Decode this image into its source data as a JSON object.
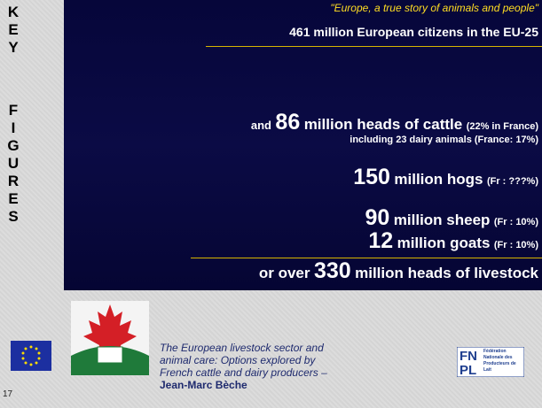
{
  "side_label": [
    "KEY",
    "FIGURES"
  ],
  "quote": "\"Europe, a true story of animals and people\"",
  "citizens": "461 million European citizens in the EU-25",
  "cattle": {
    "prefix": "and",
    "number": "86",
    "text": "million heads of cattle",
    "note": "(22% in France)"
  },
  "dairy": "including 23 dairy animals (France: 17%)",
  "hogs": {
    "number": "150",
    "text": "million hogs",
    "note": "(Fr : ???%)"
  },
  "sheep": {
    "number": "90",
    "text": "million sheep",
    "note": "(Fr : 10%)"
  },
  "goats": {
    "number": "12",
    "text": "million goats",
    "note": "(Fr : 10%)"
  },
  "total": {
    "prefix": "or over",
    "number": "330",
    "text": "million heads of livestock"
  },
  "footer": {
    "caption": "The European livestock sector and animal care:  Options explored by French cattle and dairy producers  –",
    "author": "Jean-Marc Bèche",
    "logo": {
      "fn": "FN",
      "pl": "PL",
      "name": "Fédération Nationale des Producteurs de Lait"
    }
  },
  "page_number": "17"
}
